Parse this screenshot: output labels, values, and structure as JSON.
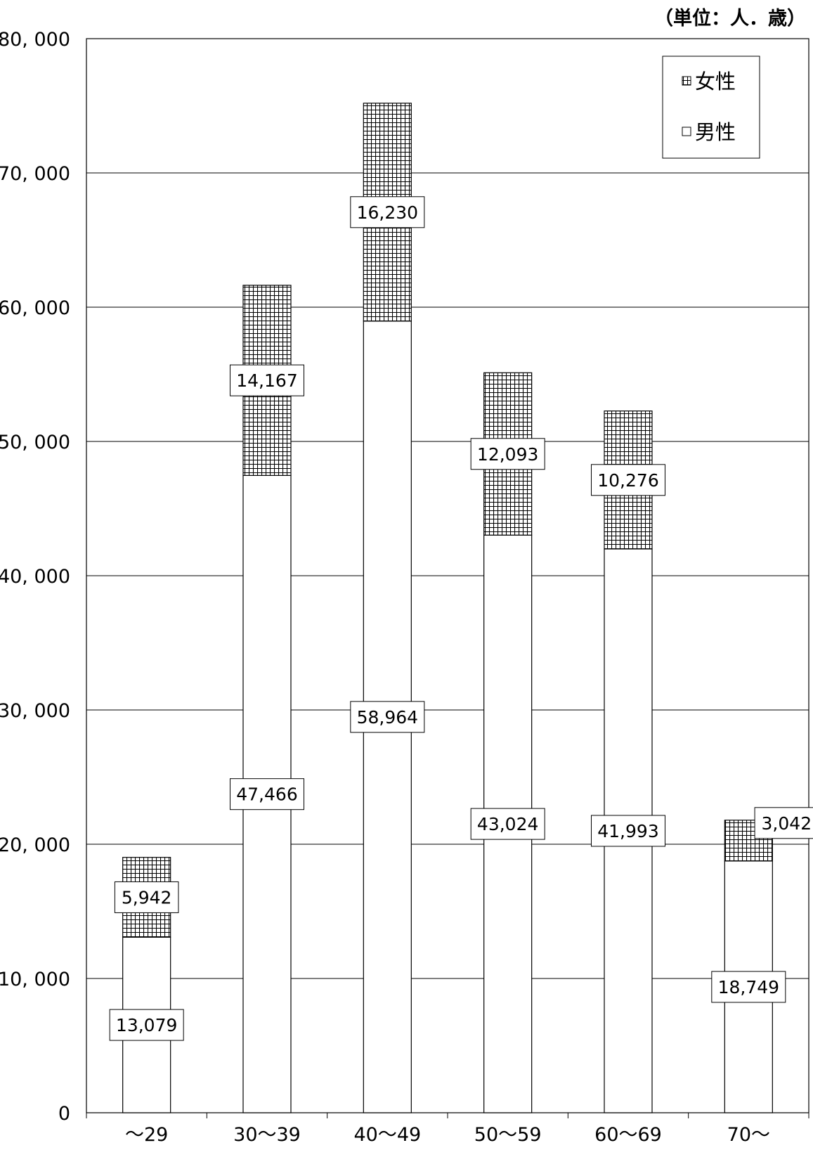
{
  "unit_label": "（単位：人．歳）",
  "chart_data": {
    "type": "bar",
    "stacked": true,
    "categories": [
      "～29",
      "30～39",
      "40～49",
      "50～59",
      "60～69",
      "70～"
    ],
    "series": [
      {
        "name": "男性",
        "values": [
          13079,
          47466,
          58964,
          43024,
          41993,
          18749
        ],
        "pattern": "none",
        "color": "#ffffff"
      },
      {
        "name": "女性",
        "values": [
          5942,
          14167,
          16230,
          12093,
          10276,
          3042
        ],
        "pattern": "grid",
        "color": "#000000"
      }
    ],
    "data_labels": {
      "男性": [
        "13,079",
        "47,466",
        "58,964",
        "43,024",
        "41,993",
        "18,749"
      ],
      "女性": [
        "5,942",
        "14,167",
        "16,230",
        "12,093",
        "10,276",
        "3,042"
      ]
    },
    "y_ticks": [
      0,
      10000,
      20000,
      30000,
      40000,
      50000,
      60000,
      70000,
      80000
    ],
    "y_tick_labels": [
      "0",
      "10, 000",
      "20, 000",
      "30, 000",
      "40, 000",
      "50, 000",
      "60, 000",
      "70, 000",
      "80, 000"
    ],
    "ylim": [
      0,
      80000
    ],
    "grid": true,
    "legend_position": "top-right",
    "legend_order": [
      "女性",
      "男性"
    ],
    "title": "",
    "xlabel": "",
    "ylabel": ""
  }
}
